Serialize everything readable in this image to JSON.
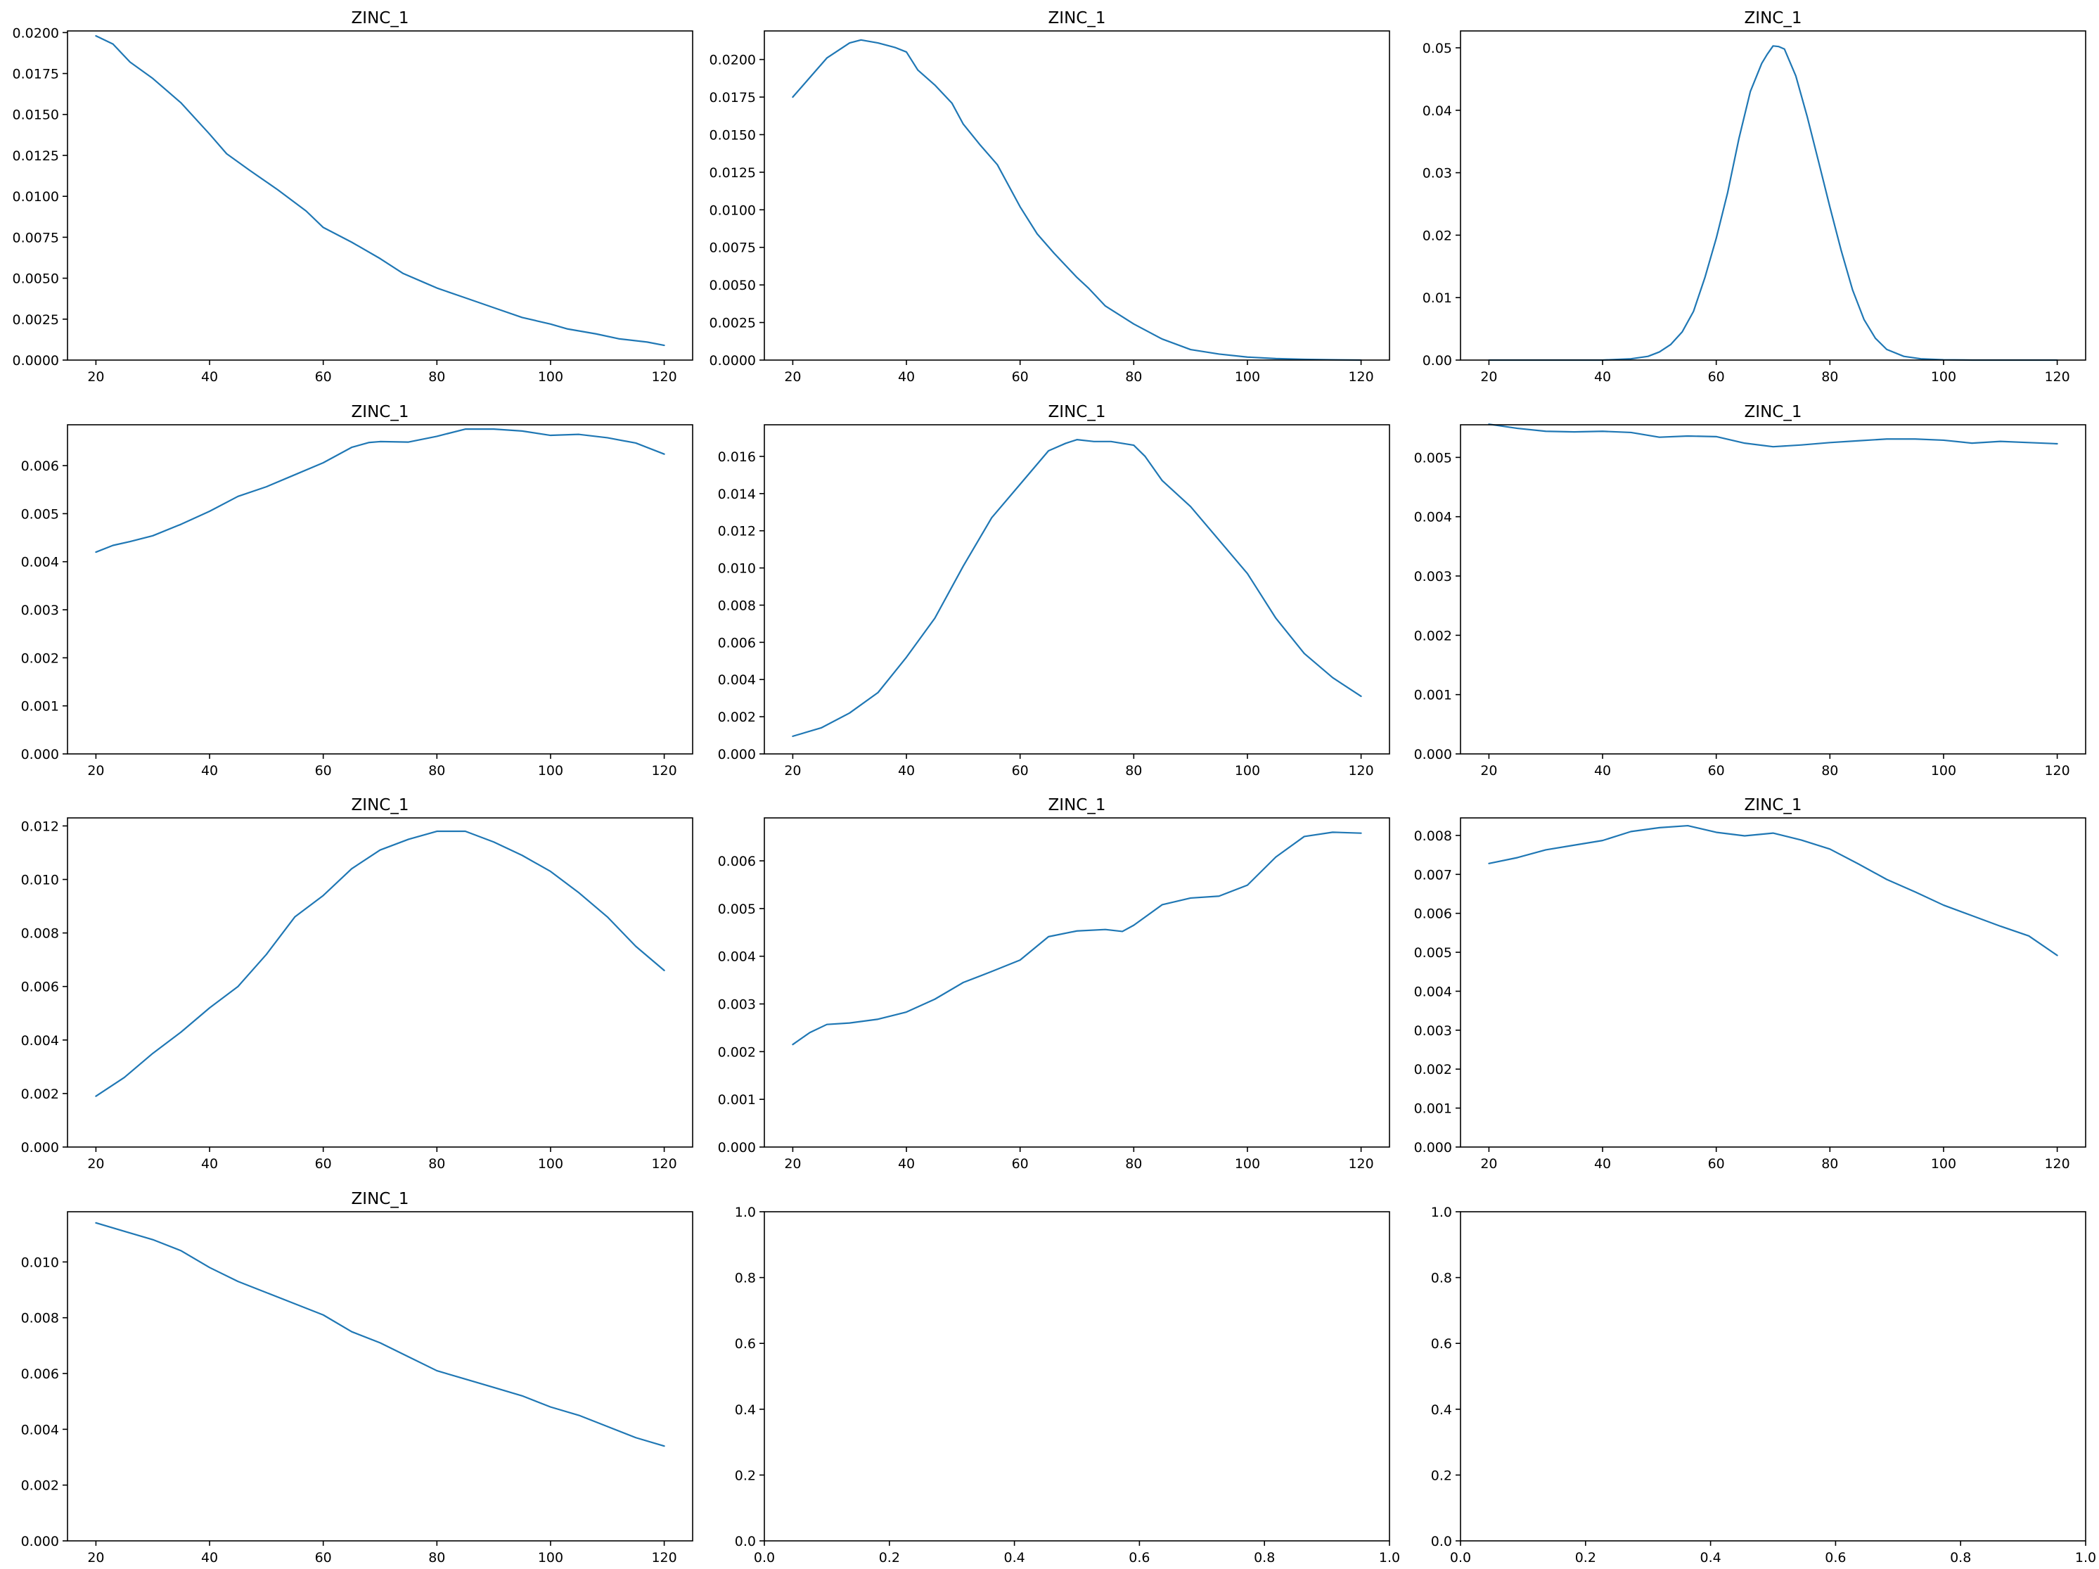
{
  "colors": {
    "line": "#1f77b4",
    "axes": "#000000",
    "background": "#ffffff"
  },
  "figure": {
    "rows": 4,
    "cols": 3
  },
  "chart_data": [
    {
      "type": "line",
      "title": "ZINC_1",
      "xlim": [
        15,
        125
      ],
      "ylim": [
        0,
        0.0201
      ],
      "x_ticks": [
        20,
        40,
        60,
        80,
        100,
        120
      ],
      "x_tick_labels": [
        "20",
        "40",
        "60",
        "80",
        "100",
        "120"
      ],
      "y_ticks": [
        0,
        0.0025,
        0.005,
        0.0075,
        0.01,
        0.0125,
        0.015,
        0.0175,
        0.02
      ],
      "y_tick_labels": [
        "0.0000",
        "0.0025",
        "0.0050",
        "0.0075",
        "0.0100",
        "0.0125",
        "0.0150",
        "0.0175",
        "0.0200"
      ],
      "grid": false,
      "series": [
        {
          "x": [
            20,
            23,
            26,
            30,
            35,
            40,
            43,
            47,
            52,
            57,
            60,
            65,
            70,
            74,
            78,
            80,
            85,
            90,
            95,
            100,
            103,
            108,
            112,
            117,
            120
          ],
          "y": [
            0.0198,
            0.0193,
            0.0182,
            0.0172,
            0.0157,
            0.0138,
            0.0126,
            0.0116,
            0.0104,
            0.0091,
            0.0081,
            0.0072,
            0.0062,
            0.0053,
            0.0047,
            0.0044,
            0.0038,
            0.0032,
            0.0026,
            0.0022,
            0.0019,
            0.0016,
            0.0013,
            0.0011,
            0.0009
          ]
        }
      ]
    },
    {
      "type": "line",
      "title": "ZINC_1",
      "xlim": [
        15,
        125
      ],
      "ylim": [
        0,
        0.0219
      ],
      "x_ticks": [
        20,
        40,
        60,
        80,
        100,
        120
      ],
      "x_tick_labels": [
        "20",
        "40",
        "60",
        "80",
        "100",
        "120"
      ],
      "y_ticks": [
        0,
        0.0025,
        0.005,
        0.0075,
        0.01,
        0.0125,
        0.015,
        0.0175,
        0.02
      ],
      "y_tick_labels": [
        "0.0000",
        "0.0025",
        "0.0050",
        "0.0075",
        "0.0100",
        "0.0125",
        "0.0150",
        "0.0175",
        "0.0200"
      ],
      "grid": false,
      "series": [
        {
          "x": [
            20,
            23,
            26,
            30,
            32,
            35,
            38,
            40,
            42,
            45,
            48,
            50,
            53,
            56,
            60,
            63,
            66,
            68,
            70,
            72,
            75,
            80,
            85,
            90,
            95,
            100,
            105,
            110,
            115,
            120
          ],
          "y": [
            0.0175,
            0.0188,
            0.0201,
            0.0211,
            0.0213,
            0.0211,
            0.0208,
            0.0205,
            0.0193,
            0.0183,
            0.0171,
            0.0157,
            0.0143,
            0.013,
            0.0102,
            0.0084,
            0.0071,
            0.0063,
            0.0055,
            0.0048,
            0.0036,
            0.0024,
            0.0014,
            0.0007,
            0.0004,
            0.0002,
            0.0001,
            5e-05,
            2e-05,
            0.0
          ],
          "name": ""
        }
      ]
    },
    {
      "type": "line",
      "title": "ZINC_1",
      "xlim": [
        15,
        125
      ],
      "ylim": [
        0,
        0.0527
      ],
      "x_ticks": [
        20,
        40,
        60,
        80,
        100,
        120
      ],
      "x_tick_labels": [
        "20",
        "40",
        "60",
        "80",
        "100",
        "120"
      ],
      "y_ticks": [
        0,
        0.01,
        0.02,
        0.03,
        0.04,
        0.05
      ],
      "y_tick_labels": [
        "0.00",
        "0.01",
        "0.02",
        "0.03",
        "0.04",
        "0.05"
      ],
      "grid": false,
      "series": [
        {
          "x": [
            20,
            30,
            40,
            45,
            48,
            50,
            52,
            54,
            56,
            58,
            60,
            62,
            64,
            66,
            68,
            69,
            70,
            71,
            72,
            74,
            76,
            78,
            80,
            82,
            84,
            86,
            88,
            90,
            93,
            96,
            100,
            105,
            110,
            120
          ],
          "y": [
            0.0,
            0.0,
            0.0,
            0.0002,
            0.0006,
            0.0013,
            0.0025,
            0.0045,
            0.0078,
            0.0132,
            0.0195,
            0.0268,
            0.0355,
            0.043,
            0.0475,
            0.049,
            0.0503,
            0.0502,
            0.0498,
            0.0455,
            0.039,
            0.0318,
            0.0245,
            0.0175,
            0.0112,
            0.0065,
            0.0035,
            0.0017,
            0.0006,
            0.0002,
            5e-05,
            0.0,
            0.0,
            0.0
          ]
        }
      ]
    },
    {
      "type": "line",
      "title": "ZINC_1",
      "xlim": [
        15,
        125
      ],
      "ylim": [
        0,
        0.00685
      ],
      "x_ticks": [
        20,
        40,
        60,
        80,
        100,
        120
      ],
      "x_tick_labels": [
        "20",
        "40",
        "60",
        "80",
        "100",
        "120"
      ],
      "y_ticks": [
        0,
        0.001,
        0.002,
        0.003,
        0.004,
        0.005,
        0.006
      ],
      "y_tick_labels": [
        "0.000",
        "0.001",
        "0.002",
        "0.003",
        "0.004",
        "0.005",
        "0.006"
      ],
      "grid": false,
      "series": [
        {
          "x": [
            20,
            23,
            26,
            30,
            35,
            40,
            45,
            50,
            55,
            60,
            65,
            68,
            70,
            75,
            80,
            85,
            90,
            95,
            100,
            105,
            110,
            115,
            120
          ],
          "y": [
            0.0042,
            0.00434,
            0.00442,
            0.00454,
            0.00478,
            0.00505,
            0.00536,
            0.00556,
            0.00581,
            0.00606,
            0.00638,
            0.00648,
            0.0065,
            0.00649,
            0.00661,
            0.00676,
            0.00676,
            0.00672,
            0.00663,
            0.00665,
            0.00658,
            0.00647,
            0.00624
          ]
        }
      ]
    },
    {
      "type": "line",
      "title": "ZINC_1",
      "xlim": [
        15,
        125
      ],
      "ylim": [
        0,
        0.0177
      ],
      "x_ticks": [
        20,
        40,
        60,
        80,
        100,
        120
      ],
      "x_tick_labels": [
        "20",
        "40",
        "60",
        "80",
        "100",
        "120"
      ],
      "y_ticks": [
        0,
        0.002,
        0.004,
        0.006,
        0.008,
        0.01,
        0.012,
        0.014,
        0.016
      ],
      "y_tick_labels": [
        "0.000",
        "0.002",
        "0.004",
        "0.006",
        "0.008",
        "0.010",
        "0.012",
        "0.014",
        "0.016"
      ],
      "grid": false,
      "series": [
        {
          "x": [
            20,
            25,
            30,
            35,
            40,
            45,
            50,
            55,
            60,
            65,
            68,
            70,
            73,
            76,
            80,
            82,
            85,
            90,
            95,
            100,
            105,
            110,
            115,
            120
          ],
          "y": [
            0.00095,
            0.0014,
            0.0022,
            0.0033,
            0.0052,
            0.0073,
            0.0101,
            0.0127,
            0.0145,
            0.0163,
            0.0167,
            0.0169,
            0.0168,
            0.0168,
            0.0166,
            0.016,
            0.0147,
            0.0133,
            0.0115,
            0.0097,
            0.0073,
            0.0054,
            0.0041,
            0.0031
          ]
        }
      ]
    },
    {
      "type": "line",
      "title": "ZINC_1",
      "xlim": [
        15,
        125
      ],
      "ylim": [
        0,
        0.00555
      ],
      "x_ticks": [
        20,
        40,
        60,
        80,
        100,
        120
      ],
      "x_tick_labels": [
        "20",
        "40",
        "60",
        "80",
        "100",
        "120"
      ],
      "y_ticks": [
        0,
        0.001,
        0.002,
        0.003,
        0.004,
        0.005
      ],
      "y_tick_labels": [
        "0.000",
        "0.001",
        "0.002",
        "0.003",
        "0.004",
        "0.005"
      ],
      "grid": false,
      "series": [
        {
          "x": [
            20,
            25,
            30,
            35,
            40,
            45,
            50,
            55,
            60,
            65,
            70,
            75,
            80,
            85,
            90,
            95,
            100,
            105,
            110,
            115,
            120
          ],
          "y": [
            0.00556,
            0.00549,
            0.00544,
            0.00543,
            0.00544,
            0.00542,
            0.00534,
            0.00536,
            0.00535,
            0.00524,
            0.00518,
            0.00521,
            0.00525,
            0.00528,
            0.00531,
            0.00531,
            0.00529,
            0.00524,
            0.00527,
            0.00525,
            0.00523
          ]
        }
      ]
    },
    {
      "type": "line",
      "title": "ZINC_1",
      "xlim": [
        15,
        125
      ],
      "ylim": [
        0,
        0.0123
      ],
      "x_ticks": [
        20,
        40,
        60,
        80,
        100,
        120
      ],
      "x_tick_labels": [
        "20",
        "40",
        "60",
        "80",
        "100",
        "120"
      ],
      "y_ticks": [
        0,
        0.002,
        0.004,
        0.006,
        0.008,
        0.01,
        0.012
      ],
      "y_tick_labels": [
        "0.000",
        "0.002",
        "0.004",
        "0.006",
        "0.008",
        "0.010",
        "0.012"
      ],
      "grid": false,
      "series": [
        {
          "x": [
            20,
            25,
            30,
            35,
            40,
            45,
            50,
            55,
            60,
            65,
            70,
            75,
            80,
            85,
            90,
            95,
            100,
            105,
            110,
            115,
            120
          ],
          "y": [
            0.0019,
            0.0026,
            0.0035,
            0.0043,
            0.0052,
            0.006,
            0.0072,
            0.0086,
            0.0094,
            0.0104,
            0.0111,
            0.0115,
            0.0118,
            0.0118,
            0.0114,
            0.0109,
            0.0103,
            0.0095,
            0.0086,
            0.0075,
            0.0066
          ]
        }
      ]
    },
    {
      "type": "line",
      "title": "ZINC_1",
      "xlim": [
        15,
        125
      ],
      "ylim": [
        0,
        0.0069
      ],
      "x_ticks": [
        20,
        40,
        60,
        80,
        100,
        120
      ],
      "x_tick_labels": [
        "20",
        "40",
        "60",
        "80",
        "100",
        "120"
      ],
      "y_ticks": [
        0,
        0.001,
        0.002,
        0.003,
        0.004,
        0.005,
        0.006
      ],
      "y_tick_labels": [
        "0.000",
        "0.001",
        "0.002",
        "0.003",
        "0.004",
        "0.005",
        "0.006"
      ],
      "grid": false,
      "series": [
        {
          "x": [
            20,
            23,
            26,
            30,
            35,
            40,
            45,
            50,
            55,
            60,
            65,
            70,
            75,
            78,
            80,
            85,
            90,
            95,
            100,
            105,
            110,
            115,
            120
          ],
          "y": [
            0.00215,
            0.0024,
            0.00257,
            0.0026,
            0.00268,
            0.00283,
            0.0031,
            0.00345,
            0.00368,
            0.00392,
            0.00441,
            0.00453,
            0.00456,
            0.00452,
            0.00465,
            0.00508,
            0.00522,
            0.00526,
            0.00549,
            0.00608,
            0.00651,
            0.0066,
            0.00658
          ]
        }
      ]
    },
    {
      "type": "line",
      "title": "ZINC_1",
      "xlim": [
        15,
        125
      ],
      "ylim": [
        0,
        0.00845
      ],
      "x_ticks": [
        20,
        40,
        60,
        80,
        100,
        120
      ],
      "x_tick_labels": [
        "20",
        "40",
        "60",
        "80",
        "100",
        "120"
      ],
      "y_ticks": [
        0,
        0.001,
        0.002,
        0.003,
        0.004,
        0.005,
        0.006,
        0.007,
        0.008
      ],
      "y_tick_labels": [
        "0.000",
        "0.001",
        "0.002",
        "0.003",
        "0.004",
        "0.005",
        "0.006",
        "0.007",
        "0.008"
      ],
      "grid": false,
      "series": [
        {
          "x": [
            20,
            25,
            30,
            35,
            40,
            45,
            50,
            55,
            60,
            65,
            70,
            75,
            80,
            85,
            90,
            95,
            100,
            105,
            110,
            115,
            120
          ],
          "y": [
            0.00728,
            0.00743,
            0.00763,
            0.00775,
            0.00787,
            0.0081,
            0.0082,
            0.00825,
            0.00808,
            0.00799,
            0.00806,
            0.00788,
            0.00765,
            0.00727,
            0.00687,
            0.00655,
            0.00621,
            0.00594,
            0.00567,
            0.00542,
            0.00492
          ]
        }
      ]
    },
    {
      "type": "line",
      "title": "ZINC_1",
      "xlim": [
        15,
        125
      ],
      "ylim": [
        0,
        0.0118
      ],
      "x_ticks": [
        20,
        40,
        60,
        80,
        100,
        120
      ],
      "x_tick_labels": [
        "20",
        "40",
        "60",
        "80",
        "100",
        "120"
      ],
      "y_ticks": [
        0,
        0.002,
        0.004,
        0.006,
        0.008,
        0.01
      ],
      "y_tick_labels": [
        "0.000",
        "0.002",
        "0.004",
        "0.006",
        "0.008",
        "0.010"
      ],
      "grid": false,
      "series": [
        {
          "x": [
            20,
            25,
            30,
            35,
            40,
            45,
            50,
            55,
            60,
            65,
            70,
            75,
            80,
            85,
            90,
            95,
            100,
            105,
            110,
            115,
            120
          ],
          "y": [
            0.0114,
            0.0111,
            0.0108,
            0.0104,
            0.0098,
            0.0093,
            0.0089,
            0.0085,
            0.0081,
            0.0075,
            0.0071,
            0.0066,
            0.0061,
            0.0058,
            0.0055,
            0.0052,
            0.0048,
            0.0045,
            0.0041,
            0.0037,
            0.0034
          ]
        }
      ]
    },
    {
      "type": "line",
      "title": "",
      "xlim": [
        0,
        1
      ],
      "ylim": [
        0,
        1
      ],
      "x_ticks": [
        0,
        0.2,
        0.4,
        0.6,
        0.8,
        1.0
      ],
      "x_tick_labels": [
        "0.0",
        "0.2",
        "0.4",
        "0.6",
        "0.8",
        "1.0"
      ],
      "y_ticks": [
        0,
        0.2,
        0.4,
        0.6,
        0.8,
        1.0
      ],
      "y_tick_labels": [
        "0.0",
        "0.2",
        "0.4",
        "0.6",
        "0.8",
        "1.0"
      ],
      "grid": false,
      "series": []
    },
    {
      "type": "line",
      "title": "",
      "xlim": [
        0,
        1
      ],
      "ylim": [
        0,
        1
      ],
      "x_ticks": [
        0,
        0.2,
        0.4,
        0.6,
        0.8,
        1.0
      ],
      "x_tick_labels": [
        "0.0",
        "0.2",
        "0.4",
        "0.6",
        "0.8",
        "1.0"
      ],
      "y_ticks": [
        0,
        0.2,
        0.4,
        0.6,
        0.8,
        1.0
      ],
      "y_tick_labels": [
        "0.0",
        "0.2",
        "0.4",
        "0.6",
        "0.8",
        "1.0"
      ],
      "grid": false,
      "series": []
    }
  ]
}
